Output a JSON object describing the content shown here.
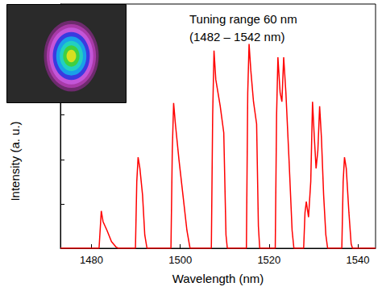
{
  "chart_data": {
    "type": "line",
    "x_label": "Wavelength (nm)",
    "y_label": "Intensity (a. u.)",
    "annotations": [
      "Tuning range 60 nm",
      "(1482 – 1542 nm)"
    ],
    "xlim": [
      1473,
      1544
    ],
    "xticks": [
      1480,
      1500,
      1520,
      1540
    ],
    "ylim": [
      0,
      5.5
    ],
    "yticks": [
      0,
      1,
      2,
      3,
      4,
      5
    ],
    "tick_labels": "x",
    "grid": false,
    "color": "#ff0000",
    "x": [
      1473,
      1481.7,
      1482.0,
      1482.2,
      1482.6,
      1483.5,
      1484.5,
      1485.5,
      1486,
      1489.9,
      1490.2,
      1490.5,
      1490.9,
      1491.5,
      1492,
      1492.5,
      1497.9,
      1498.2,
      1498.5,
      1498.9,
      1499.7,
      1500.6,
      1501.5,
      1502.2,
      1507,
      1507.3,
      1507.6,
      1508,
      1509,
      1509.8,
      1510.3,
      1510.6,
      1514.9,
      1515.2,
      1515.5,
      1515.9,
      1516.5,
      1517.2,
      1517.6,
      1517.9,
      1521.4,
      1521.7,
      1522,
      1522.5,
      1522.9,
      1523.3,
      1523.8,
      1524.5,
      1525.2,
      1525.6,
      1527.8,
      1528.1,
      1528.4,
      1528.9,
      1529.4,
      1529.8,
      1530.2,
      1530.6,
      1531.0,
      1531.4,
      1531.8,
      1532.3,
      1532.8,
      1533.2,
      1536.4,
      1536.7,
      1537,
      1537.4,
      1538,
      1538.5,
      1538.8,
      1544
    ],
    "values": [
      0,
      0,
      0.5,
      0.84,
      0.6,
      0.4,
      0.15,
      0.03,
      0,
      0,
      1.5,
      2.05,
      1.8,
      1.2,
      0.3,
      0,
      0,
      2.2,
      3.27,
      2.8,
      2.0,
      1.2,
      0.4,
      0,
      0,
      3,
      4.45,
      3.8,
      3.2,
      2.6,
      0.3,
      0,
      0,
      3.5,
      4.6,
      4.0,
      3.3,
      2.8,
      0.5,
      0,
      0,
      3,
      4.3,
      3.5,
      3.3,
      4.3,
      3.5,
      2.0,
      0.4,
      0,
      0,
      0.8,
      1.05,
      0.7,
      1.5,
      3.3,
      2.5,
      1.8,
      2.2,
      3.2,
      2.5,
      1.2,
      0.3,
      0,
      0,
      1.5,
      2.05,
      1.8,
      0.8,
      0.1,
      0,
      0
    ]
  }
}
